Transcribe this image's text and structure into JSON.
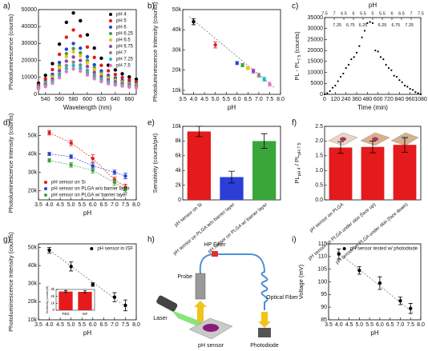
{
  "chart_data": [
    {
      "type": "line",
      "label": "a)",
      "xlabel": "Wavelength (nm)",
      "ylabel": "Photoluminescence (counts)",
      "xlim": [
        530,
        670
      ],
      "xticks": [
        540,
        560,
        580,
        600,
        620,
        640,
        660
      ],
      "ylim": [
        0,
        50000
      ],
      "yticks": [
        0,
        10000,
        20000,
        30000,
        40000,
        50000
      ],
      "legend": "upper right",
      "x": [
        530,
        540,
        550,
        560,
        570,
        580,
        590,
        600,
        610,
        620,
        630,
        640,
        650,
        660,
        670
      ],
      "series": [
        {
          "name": "pH 4",
          "color": "#000000",
          "values": [
            6600,
            11200,
            18100,
            29600,
            42500,
            48000,
            43400,
            35100,
            27300,
            21300,
            17200,
            14400,
            12100,
            10300,
            8900
          ]
        },
        {
          "name": "pH 5",
          "color": "#e41a1c",
          "values": [
            5600,
            9200,
            14600,
            23600,
            33700,
            38000,
            34400,
            27900,
            21800,
            17100,
            13900,
            11700,
            9900,
            8500,
            7400
          ]
        },
        {
          "name": "pH 6",
          "color": "#2b3fd6",
          "values": [
            4800,
            7600,
            11800,
            18800,
            26600,
            30000,
            27200,
            22200,
            17400,
            13800,
            11200,
            9600,
            8200,
            7000,
            6200
          ]
        },
        {
          "name": "pH 6.25",
          "color": "#3aa63a",
          "values": [
            4500,
            7000,
            10800,
            17000,
            24000,
            27000,
            24500,
            20000,
            15800,
            12500,
            10300,
            8800,
            7500,
            6500,
            5800
          ]
        },
        {
          "name": "pH 6.5",
          "color": "#e8c31a",
          "values": [
            4300,
            6600,
            10100,
            15800,
            22200,
            25000,
            22700,
            18600,
            14700,
            11700,
            9600,
            8200,
            7100,
            6100,
            5500
          ]
        },
        {
          "name": "pH 6.75",
          "color": "#8e44ad",
          "values": [
            4000,
            6000,
            9000,
            14000,
            19600,
            22000,
            20000,
            16400,
            13000,
            10400,
            8600,
            7400,
            6400,
            5600,
            5000
          ]
        },
        {
          "name": "pH 7",
          "color": "#888888",
          "values": [
            3700,
            5400,
            8000,
            12200,
            17000,
            19000,
            17300,
            14200,
            11400,
            9100,
            7600,
            6600,
            5700,
            5100,
            4600
          ]
        },
        {
          "name": "pH 7.25",
          "color": "#17becf",
          "values": [
            3500,
            5000,
            7300,
            11000,
            15200,
            17000,
            15500,
            12800,
            10300,
            8300,
            7000,
            6100,
            5300,
            4700,
            4300
          ]
        },
        {
          "name": "pH 7.5",
          "color": "#e377c2",
          "values": [
            3300,
            4600,
            6600,
            9800,
            13400,
            15000,
            13700,
            11400,
            9200,
            7500,
            6300,
            5500,
            4900,
            4300,
            4000
          ]
        }
      ]
    },
    {
      "type": "scatter",
      "label": "b)",
      "xlabel": "pH",
      "ylabel": "Photoluminescence Intensity (counts)",
      "xlim": [
        3.5,
        8
      ],
      "xticks": [
        {
          "value": 3.5,
          "label": "3.5"
        },
        {
          "value": 4,
          "label": "4.0"
        },
        {
          "value": 4.5,
          "label": "4.5"
        },
        {
          "value": 5,
          "label": "5.0"
        },
        {
          "value": 5.5,
          "label": "5.5"
        },
        {
          "value": 6,
          "label": "6.0"
        },
        {
          "value": 6.5,
          "label": "6.5"
        },
        {
          "value": 7,
          "label": "7.0"
        },
        {
          "value": 7.5,
          "label": "7.5"
        },
        {
          "value": 8,
          "label": "8.0"
        }
      ],
      "ylim": [
        8000,
        50000
      ],
      "yticks": [
        {
          "value": 10000,
          "label": "10k"
        },
        {
          "value": 20000,
          "label": "20k"
        },
        {
          "value": 30000,
          "label": "30k"
        },
        {
          "value": 40000,
          "label": "40k"
        },
        {
          "value": 50000,
          "label": "50k"
        }
      ],
      "x": [
        4,
        5,
        6,
        6.25,
        6.5,
        6.75,
        7,
        7.25,
        7.5
      ],
      "fit": {
        "x": [
          3.8,
          7.7
        ],
        "y": [
          46500,
          11500
        ]
      },
      "series": [
        {
          "mode": "points",
          "values": [
            44000,
            32500,
            23500,
            22500,
            21000,
            19500,
            17500,
            15500,
            13000
          ],
          "errors": [
            1500,
            1500,
            800,
            800,
            800,
            1000,
            1000,
            1000,
            1000
          ],
          "colors": [
            "#000000",
            "#e41a1c",
            "#2b3fd6",
            "#3aa63a",
            "#e8c31a",
            "#8e44ad",
            "#888888",
            "#17becf",
            "#e377c2"
          ]
        }
      ]
    },
    {
      "type": "scatter",
      "label": "c)",
      "xlabel": "Time (min)",
      "ylabel": [
        "PL - PL",
        "7.5",
        " (counts)"
      ],
      "x2label": "pH",
      "xlim": [
        0,
        1080
      ],
      "xticks": [
        0,
        120,
        240,
        360,
        480,
        600,
        720,
        840,
        960,
        1080
      ],
      "ylim": [
        0,
        35000
      ],
      "yticks": [
        0,
        5000,
        10000,
        15000,
        20000,
        25000,
        30000,
        35000
      ],
      "x2ticks": [
        {
          "value": 0,
          "label": "7.5"
        },
        {
          "value": 108,
          "label": "7"
        },
        {
          "value": 216,
          "label": "6.5"
        },
        {
          "value": 324,
          "label": "6"
        },
        {
          "value": 432,
          "label": "5.5"
        },
        {
          "value": 540,
          "label": "5"
        },
        {
          "value": 648,
          "label": "5.5"
        },
        {
          "value": 756,
          "label": "6"
        },
        {
          "value": 864,
          "label": "6.5"
        },
        {
          "value": 972,
          "label": "7"
        },
        {
          "value": 1080,
          "label": "7.5"
        }
      ],
      "annotations": [
        "7.25",
        "6.75",
        "6.25",
        "6.25",
        "6.75",
        "7.25"
      ],
      "x": [
        0,
        30,
        60,
        90,
        120,
        150,
        180,
        210,
        240,
        270,
        300,
        330,
        360,
        390,
        420,
        450,
        480,
        510,
        540,
        570,
        600,
        630,
        660,
        690,
        720,
        750,
        780,
        810,
        840,
        870,
        900,
        930,
        960,
        990,
        1020,
        1050,
        1080
      ],
      "series": [
        {
          "mode": "dots",
          "color": "#000000",
          "values": [
            0,
            500,
            1500,
            3000,
            4000,
            6000,
            8000,
            9500,
            12000,
            13500,
            16000,
            17000,
            19000,
            22000,
            26000,
            29000,
            32500,
            33000,
            32500,
            20000,
            19500,
            17000,
            16000,
            13500,
            12000,
            11000,
            8500,
            8000,
            6500,
            5500,
            4000,
            3500,
            2500,
            2000,
            1000,
            500,
            0
          ]
        }
      ]
    },
    {
      "type": "scatter",
      "label": "d)",
      "xlabel": "pH",
      "ylabel": "Photoluminescence Intensity (counts)",
      "legend": "lower left",
      "xlim": [
        3.5,
        8
      ],
      "xticks": [
        {
          "value": 3.5,
          "label": "3.5"
        },
        {
          "value": 4,
          "label": "4.0"
        },
        {
          "value": 4.5,
          "label": "4.5"
        },
        {
          "value": 5,
          "label": "5.0"
        },
        {
          "value": 5.5,
          "label": "5.5"
        },
        {
          "value": 6,
          "label": "6.0"
        },
        {
          "value": 6.5,
          "label": "6.5"
        },
        {
          "value": 7,
          "label": "7.0"
        },
        {
          "value": 7.5,
          "label": "7.5"
        },
        {
          "value": 8,
          "label": "8.0"
        }
      ],
      "ylim": [
        15000,
        55000
      ],
      "yticks": [
        {
          "value": 20000,
          "label": "20k"
        },
        {
          "value": 30000,
          "label": "30k"
        },
        {
          "value": 40000,
          "label": "40k"
        },
        {
          "value": 50000,
          "label": "50k"
        }
      ],
      "x": [
        4,
        5,
        6,
        7,
        7.5
      ],
      "series": [
        {
          "name": "pH sensor on Si",
          "color": "#e41a1c",
          "mode": "points",
          "connect": true,
          "values": [
            51500,
            46000,
            37500,
            26000,
            22000
          ],
          "errors": [
            1200,
            1500,
            2000,
            1500,
            1500
          ]
        },
        {
          "name": "pH sensor on PLGA w/o barrier layer",
          "color": "#2b3fd6",
          "mode": "points",
          "connect": true,
          "values": [
            40000,
            38500,
            33500,
            30000,
            28000
          ],
          "errors": [
            800,
            1000,
            1500,
            1200,
            1500
          ]
        },
        {
          "name": "pH sensor on PLGA w/ barrier layer",
          "color": "#3aa63a",
          "mode": "points",
          "connect": true,
          "values": [
            36500,
            34000,
            31000,
            24500,
            20500
          ],
          "errors": [
            1000,
            1200,
            1500,
            1500,
            1500
          ]
        }
      ]
    },
    {
      "type": "bar",
      "label": "e)",
      "ylabel": "Sensitivity (counts/pH)",
      "categories": [
        "pH sensor on Si",
        "pH sensor on PLGA w/o barrier layer",
        "pH sensor on PLGA w/ barrier layer"
      ],
      "values": [
        9300,
        3100,
        8000
      ],
      "errors": [
        700,
        800,
        1000
      ],
      "colors": [
        "#e41a1c",
        "#2b3fd6",
        "#3aa63a"
      ],
      "ylim": [
        0,
        10000
      ],
      "yticks": [
        0,
        {
          "value": 2000,
          "label": "2k"
        },
        {
          "value": 4000,
          "label": "4k"
        },
        {
          "value": 6000,
          "label": "6k"
        },
        {
          "value": 8000,
          "label": "8k"
        },
        {
          "value": 10000,
          "label": "10k"
        }
      ]
    },
    {
      "type": "bar",
      "label": "f)",
      "ylabel": [
        "PL",
        "pH 4",
        " / PL",
        "pH 7.5"
      ],
      "categories": [
        "pH sensor on PLGA",
        "pH sensor on PLGA under skin (face up)",
        "pH sensor on PLGA under skin (face down)"
      ],
      "values": [
        1.78,
        1.8,
        1.87
      ],
      "errors": [
        0.2,
        0.2,
        0.25
      ],
      "colors": [
        "#e41a1c",
        "#e41a1c",
        "#e41a1c"
      ],
      "ylim": [
        0,
        2.5
      ],
      "yticks": [
        {
          "value": 0,
          "label": "0.0"
        },
        {
          "value": 0.5,
          "label": "0.5"
        },
        {
          "value": 1,
          "label": "1.0"
        },
        {
          "value": 1.5,
          "label": "1.5"
        },
        {
          "value": 2,
          "label": "2.0"
        },
        {
          "value": 2.5,
          "label": "2.5"
        }
      ]
    },
    {
      "type": "scatter",
      "label": "g)",
      "xlabel": "pH",
      "ylabel": "Photoluminescence Intensity (counts)",
      "legend": "upper right",
      "xlim": [
        3.5,
        8
      ],
      "xticks": [
        {
          "value": 3.5,
          "label": "3.5"
        },
        {
          "value": 4,
          "label": "4.0"
        },
        {
          "value": 4.5,
          "label": "4.5"
        },
        {
          "value": 5,
          "label": "5.0"
        },
        {
          "value": 5.5,
          "label": "5.5"
        },
        {
          "value": 6,
          "label": "6.0"
        },
        {
          "value": 6.5,
          "label": "6.5"
        },
        {
          "value": 7,
          "label": "7.0"
        },
        {
          "value": 7.5,
          "label": "7.5"
        },
        {
          "value": 8,
          "label": "8.0"
        }
      ],
      "ylim": [
        10000,
        52000
      ],
      "yticks": [
        {
          "value": 10000,
          "label": "10k"
        },
        {
          "value": 20000,
          "label": "20k"
        },
        {
          "value": 30000,
          "label": "30k"
        },
        {
          "value": 40000,
          "label": "40k"
        },
        {
          "value": 50000,
          "label": "50k"
        }
      ],
      "x": [
        4,
        5,
        6,
        7,
        7.5
      ],
      "fit": {
        "x": [
          3.9,
          7.6
        ],
        "y": [
          49500,
          16500
        ]
      },
      "series": [
        {
          "name": "pH sensor in ISF",
          "color": "#000000",
          "mode": "points",
          "values": [
            48500,
            39500,
            29500,
            22500,
            18000
          ],
          "errors": [
            1500,
            2500,
            1000,
            2500,
            3000
          ]
        }
      ],
      "inset": {
        "type": "bar",
        "ylabel": "Sensitivity (counts/pH)",
        "categories": [
          "PBS",
          "ISF"
        ],
        "values": [
          2700,
          2650
        ],
        "errors": [
          150,
          150
        ],
        "colors": [
          "#e41a1c",
          "#e41a1c"
        ],
        "ylim": [
          0,
          3000
        ],
        "yticks": [
          0,
          {
            "value": 1000,
            "label": "1k"
          },
          {
            "value": 2000,
            "label": "2k"
          },
          {
            "value": 3000,
            "label": "3k"
          }
        ]
      }
    },
    {
      "type": "diagram",
      "label": "h)",
      "labels": [
        "HP Filter",
        "Probe",
        "Optical Fiber",
        "Laser",
        "pH sensor",
        "Photodiode"
      ]
    },
    {
      "type": "scatter",
      "label": "i)",
      "xlabel": "pH",
      "ylabel": "Voltage (mV)",
      "legend": "upper right",
      "xlim": [
        3.5,
        8
      ],
      "xticks": [
        {
          "value": 3.5,
          "label": "3.5"
        },
        {
          "value": 4,
          "label": "4.0"
        },
        {
          "value": 4.5,
          "label": "4.5"
        },
        {
          "value": 5,
          "label": "5.0"
        },
        {
          "value": 5.5,
          "label": "5.5"
        },
        {
          "value": 6,
          "label": "6.0"
        },
        {
          "value": 6.5,
          "label": "6.5"
        },
        {
          "value": 7,
          "label": "7.0"
        },
        {
          "value": 7.5,
          "label": "7.5"
        },
        {
          "value": 8,
          "label": "8.0"
        }
      ],
      "ylim": [
        85,
        115
      ],
      "yticks": [
        85,
        90,
        95,
        100,
        105,
        110,
        115
      ],
      "x": [
        4,
        5,
        6,
        7,
        7.5
      ],
      "fit": {
        "x": [
          3.9,
          7.6
        ],
        "y": [
          112,
          88
        ]
      },
      "series": [
        {
          "name": "pH sensor tested w/ photodiode",
          "color": "#000000",
          "mode": "points",
          "values": [
            111,
            104.5,
            99.5,
            92.5,
            89.5
          ],
          "errors": [
            2,
            1.5,
            2.5,
            1.5,
            2
          ]
        }
      ]
    }
  ]
}
